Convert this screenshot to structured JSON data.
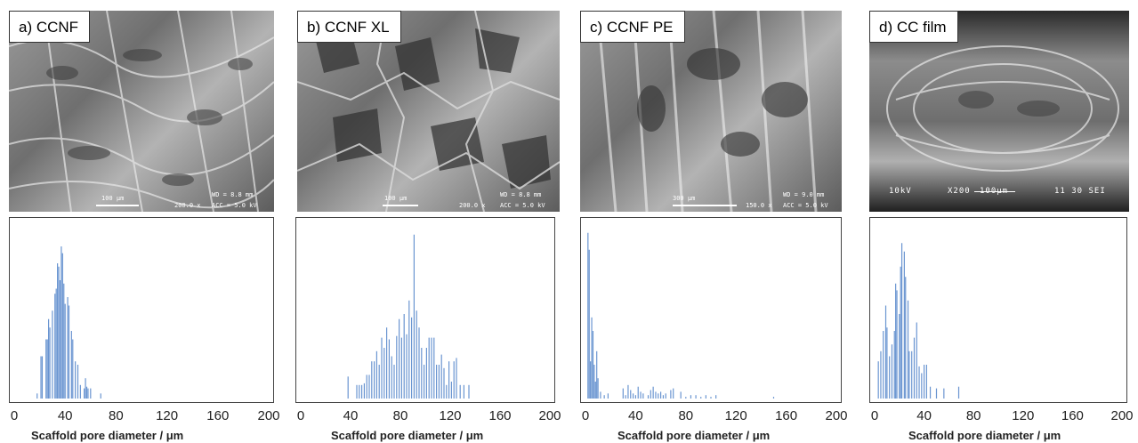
{
  "chart_data": [
    {
      "type": "bar",
      "image_label": "a) CCNF",
      "micrograph_text": [
        "100 μm",
        "WD = 8.8 mm",
        "200.0 x",
        "ACC = 5.0 kV"
      ],
      "xlabel": "Scaffold pore diameter / μm",
      "x_ticks": [
        "0",
        "40",
        "80",
        "120",
        "160",
        "200"
      ],
      "xlim": [
        0,
        200
      ],
      "ylim": [
        0,
        1
      ],
      "grid": false,
      "bar_color": "#6a95d1",
      "x": [
        18,
        21,
        22,
        25,
        26,
        27,
        28,
        30,
        32,
        33,
        34,
        35,
        36,
        37,
        38,
        39,
        40,
        42,
        43,
        45,
        46,
        48,
        50,
        52,
        55,
        56,
        57,
        58,
        60,
        68
      ],
      "values": [
        0.03,
        0.25,
        0.25,
        0.35,
        0.35,
        0.47,
        0.42,
        0.52,
        0.62,
        0.65,
        0.8,
        0.78,
        0.7,
        0.9,
        0.86,
        0.68,
        0.56,
        0.6,
        0.55,
        0.4,
        0.35,
        0.22,
        0.2,
        0.08,
        0.06,
        0.12,
        0.07,
        0.06,
        0.06,
        0.03
      ]
    },
    {
      "type": "bar",
      "image_label": "b) CCNF XL",
      "micrograph_text": [
        "100 μm",
        "WD = 8.8 mm",
        "200.0 x",
        "ACC = 5.0 kV"
      ],
      "xlabel": "Scaffold pore diameter / μm",
      "x_ticks": [
        "0",
        "40",
        "80",
        "120",
        "160",
        "200"
      ],
      "xlim": [
        0,
        200
      ],
      "ylim": [
        0,
        1
      ],
      "grid": false,
      "bar_color": "#6a95d1",
      "x": [
        38,
        45,
        47,
        49,
        51,
        53,
        55,
        57,
        59,
        61,
        63,
        65,
        67,
        69,
        71,
        73,
        75,
        77,
        79,
        81,
        83,
        85,
        87,
        89,
        91,
        93,
        95,
        97,
        99,
        101,
        103,
        105,
        107,
        109,
        111,
        113,
        115,
        117,
        119,
        121,
        123,
        125,
        128,
        131,
        135
      ],
      "values": [
        0.13,
        0.08,
        0.08,
        0.08,
        0.09,
        0.14,
        0.14,
        0.22,
        0.22,
        0.28,
        0.2,
        0.36,
        0.3,
        0.42,
        0.35,
        0.25,
        0.2,
        0.37,
        0.47,
        0.36,
        0.5,
        0.38,
        0.58,
        0.48,
        0.97,
        0.52,
        0.42,
        0.3,
        0.2,
        0.3,
        0.36,
        0.36,
        0.36,
        0.2,
        0.2,
        0.26,
        0.18,
        0.08,
        0.22,
        0.1,
        0.22,
        0.24,
        0.08,
        0.08,
        0.08
      ]
    },
    {
      "type": "bar",
      "image_label": "c) CCNF PE",
      "micrograph_text": [
        "300 μm",
        "WD = 9.0 mm",
        "150.0 x",
        "ACC = 5.0 kV"
      ],
      "xlabel": "Scaffold pore diameter / μm",
      "x_ticks": [
        "0",
        "40",
        "80",
        "120",
        "160",
        "200"
      ],
      "xlim": [
        0,
        200
      ],
      "ylim": [
        0,
        1
      ],
      "grid": false,
      "bar_color": "#6a95d1",
      "x": [
        2,
        3,
        4,
        5,
        6,
        7,
        8,
        9,
        10,
        12,
        15,
        18,
        30,
        32,
        34,
        36,
        38,
        40,
        42,
        44,
        46,
        50,
        52,
        54,
        56,
        58,
        60,
        62,
        64,
        68,
        70,
        76,
        80,
        84,
        88,
        92,
        96,
        100,
        104,
        150
      ],
      "values": [
        0.98,
        0.88,
        0.22,
        0.48,
        0.4,
        0.2,
        0.1,
        0.28,
        0.12,
        0.04,
        0.02,
        0.03,
        0.06,
        0.02,
        0.08,
        0.05,
        0.03,
        0.02,
        0.07,
        0.04,
        0.03,
        0.02,
        0.05,
        0.07,
        0.04,
        0.03,
        0.04,
        0.02,
        0.03,
        0.05,
        0.06,
        0.04,
        0.01,
        0.02,
        0.02,
        0.01,
        0.02,
        0.01,
        0.02,
        0.01
      ]
    },
    {
      "type": "bar",
      "image_label": "d) CC film",
      "micrograph_text": [
        "10kV",
        "X200",
        "100μm",
        "11 30 SEI"
      ],
      "xlabel": "Scaffold pore diameter / μm",
      "x_ticks": [
        "0",
        "40",
        "80",
        "120",
        "160",
        "200"
      ],
      "xlim": [
        0,
        200
      ],
      "ylim": [
        0,
        1
      ],
      "grid": false,
      "bar_color": "#6a95d1",
      "x": [
        3,
        5,
        7,
        9,
        10,
        12,
        14,
        16,
        17,
        18,
        20,
        21,
        22,
        24,
        25,
        27,
        28,
        30,
        32,
        34,
        36,
        38,
        40,
        42,
        45,
        50,
        56,
        68
      ],
      "values": [
        0.22,
        0.28,
        0.4,
        0.55,
        0.42,
        0.25,
        0.32,
        0.4,
        0.68,
        0.64,
        0.5,
        0.78,
        0.92,
        0.87,
        0.72,
        0.58,
        0.28,
        0.28,
        0.36,
        0.45,
        0.19,
        0.15,
        0.2,
        0.2,
        0.07,
        0.06,
        0.06,
        0.07
      ]
    }
  ]
}
